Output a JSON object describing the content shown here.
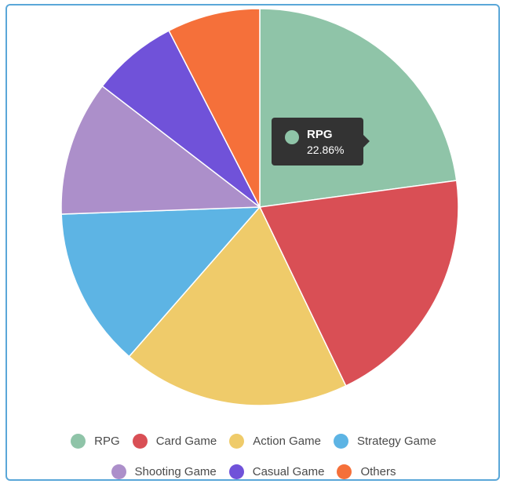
{
  "chart_data": {
    "type": "pie",
    "categories": [
      "RPG",
      "Card Game",
      "Action Game",
      "Strategy Game",
      "Shooting Game",
      "Casual Game",
      "Others"
    ],
    "values": [
      22.86,
      20.0,
      18.57,
      13.0,
      11.0,
      7.0,
      7.57
    ],
    "colors": [
      "#8fc4a8",
      "#d94f55",
      "#efcb6a",
      "#5db4e4",
      "#ac8fca",
      "#7052d9",
      "#f5703a"
    ],
    "legend_position": "bottom"
  },
  "tooltip": {
    "name": "RPG",
    "value": "22.86%",
    "color": "#8fc4a8"
  }
}
